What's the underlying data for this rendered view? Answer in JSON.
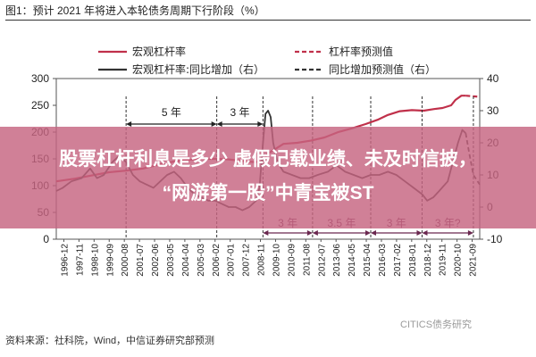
{
  "figure": {
    "title": "图1：预计 2021 年将进入本轮债务周期下行阶段（%）",
    "source": "资料来源：社科院，Wind，中信证券研究部预测",
    "watermark": "CITICS债务研究"
  },
  "headline": {
    "line1": "股票杠杆利息是多少 虚假记载业绩、未及时信披，",
    "line2": "“网游第一股”中青宝被ST"
  },
  "colors": {
    "leverage": "#c0304a",
    "yoy": "#333333",
    "overlay": "#c66480",
    "headline": "#ffffff"
  },
  "chart_data": {
    "type": "line",
    "x_ticks": [
      "1996-12",
      "1997-11",
      "1998-10",
      "1999-09",
      "2000-08",
      "2001-07",
      "2002-06",
      "2003-05",
      "2004-04",
      "2005-03",
      "2006-02",
      "2007-01",
      "2007-12",
      "2008-11",
      "2009-10",
      "2010-09",
      "2011-08",
      "2012-07",
      "2013-06",
      "2014-05",
      "2015-04",
      "2016-03",
      "2017-02",
      "2018-01",
      "2018-12",
      "2019-11",
      "2020-10",
      "2021-09"
    ],
    "x_range": [
      1996.92,
      2021.67
    ],
    "y_left": {
      "ticks": [
        "300",
        "250",
        "200",
        "150",
        "100",
        "50",
        "0"
      ],
      "lim": [
        0,
        300
      ]
    },
    "y_right": {
      "ticks": [
        "40",
        "30",
        "20",
        "10",
        "0",
        "-10"
      ],
      "lim": [
        -10,
        40
      ]
    },
    "legend": {
      "position": "top",
      "items": [
        "宏观杠杆率",
        "宏观杠杆率:同比增加（右）",
        "杠杆率预测值",
        "同比增加预测值（右）"
      ]
    },
    "series": [
      {
        "name": "宏观杠杆率",
        "axis": "left",
        "style": "solid",
        "color": "#c0304a",
        "x": [
          1996.92,
          1998.0,
          1999.0,
          2000.0,
          2001.0,
          2002.0,
          2003.0,
          2003.8,
          2004.6,
          2005.4,
          2006.2,
          2007.0,
          2007.8,
          2008.5,
          2008.95,
          2009.3,
          2009.7,
          2010.2,
          2011.0,
          2011.8,
          2012.6,
          2013.4,
          2014.2,
          2015.0,
          2015.7,
          2016.3,
          2017.0,
          2017.7,
          2018.4,
          2019.0,
          2019.5,
          2020.0,
          2020.25,
          2020.6,
          2020.85
        ],
        "y": [
          108,
          113,
          119,
          125,
          128,
          132,
          140,
          145,
          148,
          150,
          150,
          149,
          146,
          144,
          145,
          160,
          168,
          178,
          180,
          184,
          190,
          200,
          207,
          215,
          223,
          232,
          239,
          241,
          240,
          243,
          245,
          250,
          260,
          268,
          268
        ]
      },
      {
        "name": "杠杆率预测值",
        "axis": "left",
        "style": "dashed",
        "color": "#c0304a",
        "x": [
          2020.85,
          2021.2,
          2021.67
        ],
        "y": [
          268,
          267,
          266
        ]
      },
      {
        "name": "宏观杠杆率:同比增加（右）",
        "axis": "right",
        "style": "solid",
        "color": "#333333",
        "x": [
          1996.92,
          1997.3,
          1997.8,
          1998.4,
          1998.9,
          1999.3,
          1999.7,
          2000.2,
          2000.6,
          2001.0,
          2001.4,
          2001.8,
          2002.2,
          2002.6,
          2003.0,
          2003.4,
          2003.8,
          2004.2,
          2004.6,
          2005.0,
          2005.4,
          2005.8,
          2006.2,
          2006.6,
          2007.0,
          2007.4,
          2007.8,
          2008.2,
          2008.6,
          2008.8,
          2009.0,
          2009.15,
          2009.3,
          2009.45,
          2009.6,
          2009.85,
          2010.2,
          2010.7,
          2011.2,
          2011.7,
          2012.2,
          2012.8,
          2013.3,
          2013.8,
          2014.3,
          2014.8,
          2015.3,
          2015.8,
          2016.3,
          2016.8,
          2017.3,
          2017.8,
          2018.3,
          2018.6,
          2018.95,
          2019.3,
          2019.8,
          2020.1,
          2020.4,
          2020.65,
          2020.85
        ],
        "y": [
          5,
          6,
          8,
          9,
          12,
          9,
          10,
          14,
          16,
          14,
          10,
          8,
          7,
          6,
          8,
          10,
          11,
          9,
          6,
          4,
          3,
          2,
          2,
          1,
          0,
          0,
          -1,
          0,
          2,
          6,
          20,
          29,
          30,
          28,
          20,
          14,
          11,
          10,
          9,
          9,
          10,
          11,
          13,
          11,
          10,
          9,
          10,
          10,
          11,
          10,
          8,
          6,
          4,
          2,
          3,
          5,
          8,
          14,
          20,
          24,
          23
        ]
      },
      {
        "name": "同比增加预测值（右）",
        "axis": "right",
        "style": "dashed",
        "color": "#333333",
        "x": [
          2020.85,
          2021.05,
          2021.3,
          2021.67
        ],
        "y": [
          23,
          17,
          10,
          7
        ]
      }
    ],
    "annotations": [
      {
        "text": "5 年",
        "from": 2001.0,
        "to": 2006.3
      },
      {
        "text": "3 年",
        "from": 2006.3,
        "to": 2009.0
      },
      {
        "text": "3 年",
        "from": 2009.0,
        "to": 2011.9
      },
      {
        "text": "3.5 年",
        "from": 2011.9,
        "to": 2015.3
      },
      {
        "text": "3 年",
        "from": 2015.3,
        "to": 2018.3
      },
      {
        "text": "3 年?",
        "from": 2018.3,
        "to": 2021.3
      }
    ],
    "period_markers": [
      2001.0,
      2006.3,
      2009.0,
      2011.9,
      2015.3,
      2018.3,
      2021.3
    ]
  }
}
